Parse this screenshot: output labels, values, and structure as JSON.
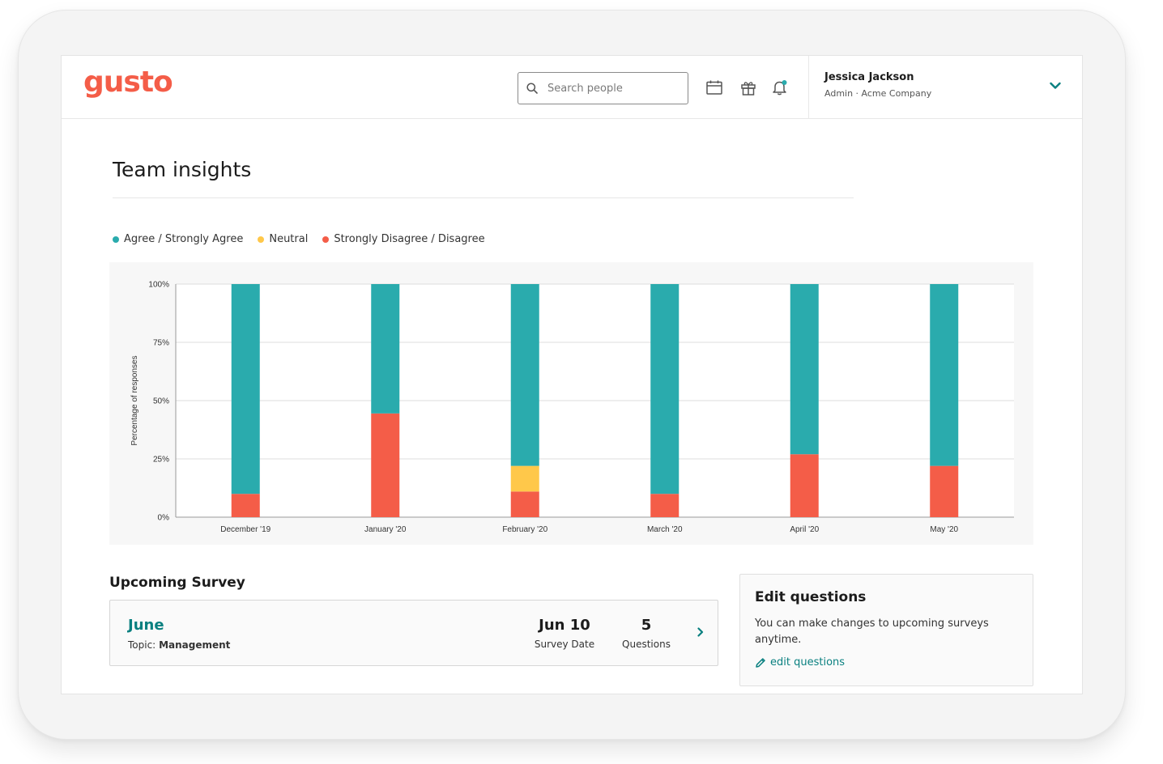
{
  "brand": {
    "logo_text": "gusto",
    "color": "#f45d48"
  },
  "header": {
    "search": {
      "placeholder": "Search people"
    },
    "icons": [
      "calendar-icon",
      "gift-icon",
      "bell-icon"
    ],
    "user": {
      "name": "Jessica Jackson",
      "role": "Admin · Acme Company"
    }
  },
  "page": {
    "title": "Team insights"
  },
  "legend": [
    {
      "label": "Agree / Strongly Agree",
      "color": "#2aabad"
    },
    {
      "label": "Neutral",
      "color": "#ffc84a"
    },
    {
      "label": "Strongly Disagree / Disagree",
      "color": "#f45d48"
    }
  ],
  "chart_data": {
    "type": "bar",
    "stacked": true,
    "title": "",
    "xlabel": "",
    "ylabel": "Percentage of responses",
    "ylim": [
      0,
      100
    ],
    "yticks": [
      "0%",
      "25%",
      "50%",
      "75%",
      "100%"
    ],
    "categories": [
      "December '19",
      "January '20",
      "February '20",
      "March '20",
      "April '20",
      "May '20"
    ],
    "series": [
      {
        "name": "Strongly Disagree / Disagree",
        "color": "#f45d48",
        "values": [
          10,
          44.5,
          11,
          10,
          27,
          22
        ]
      },
      {
        "name": "Neutral",
        "color": "#ffc84a",
        "values": [
          0,
          0,
          11,
          0,
          0,
          0
        ]
      },
      {
        "name": "Agree / Strongly Agree",
        "color": "#2aabad",
        "values": [
          90,
          55.5,
          78,
          90,
          73,
          78
        ]
      }
    ],
    "grid": true
  },
  "upcoming": {
    "section_title": "Upcoming Survey",
    "month": "June",
    "topic_label": "Topic:",
    "topic_value": "Management",
    "date_value": "Jun 10",
    "date_label": "Survey Date",
    "questions_value": "5",
    "questions_label": "Questions"
  },
  "edit": {
    "title": "Edit questions",
    "description": "You can make changes to upcoming surveys anytime.",
    "link_label": "edit questions"
  }
}
